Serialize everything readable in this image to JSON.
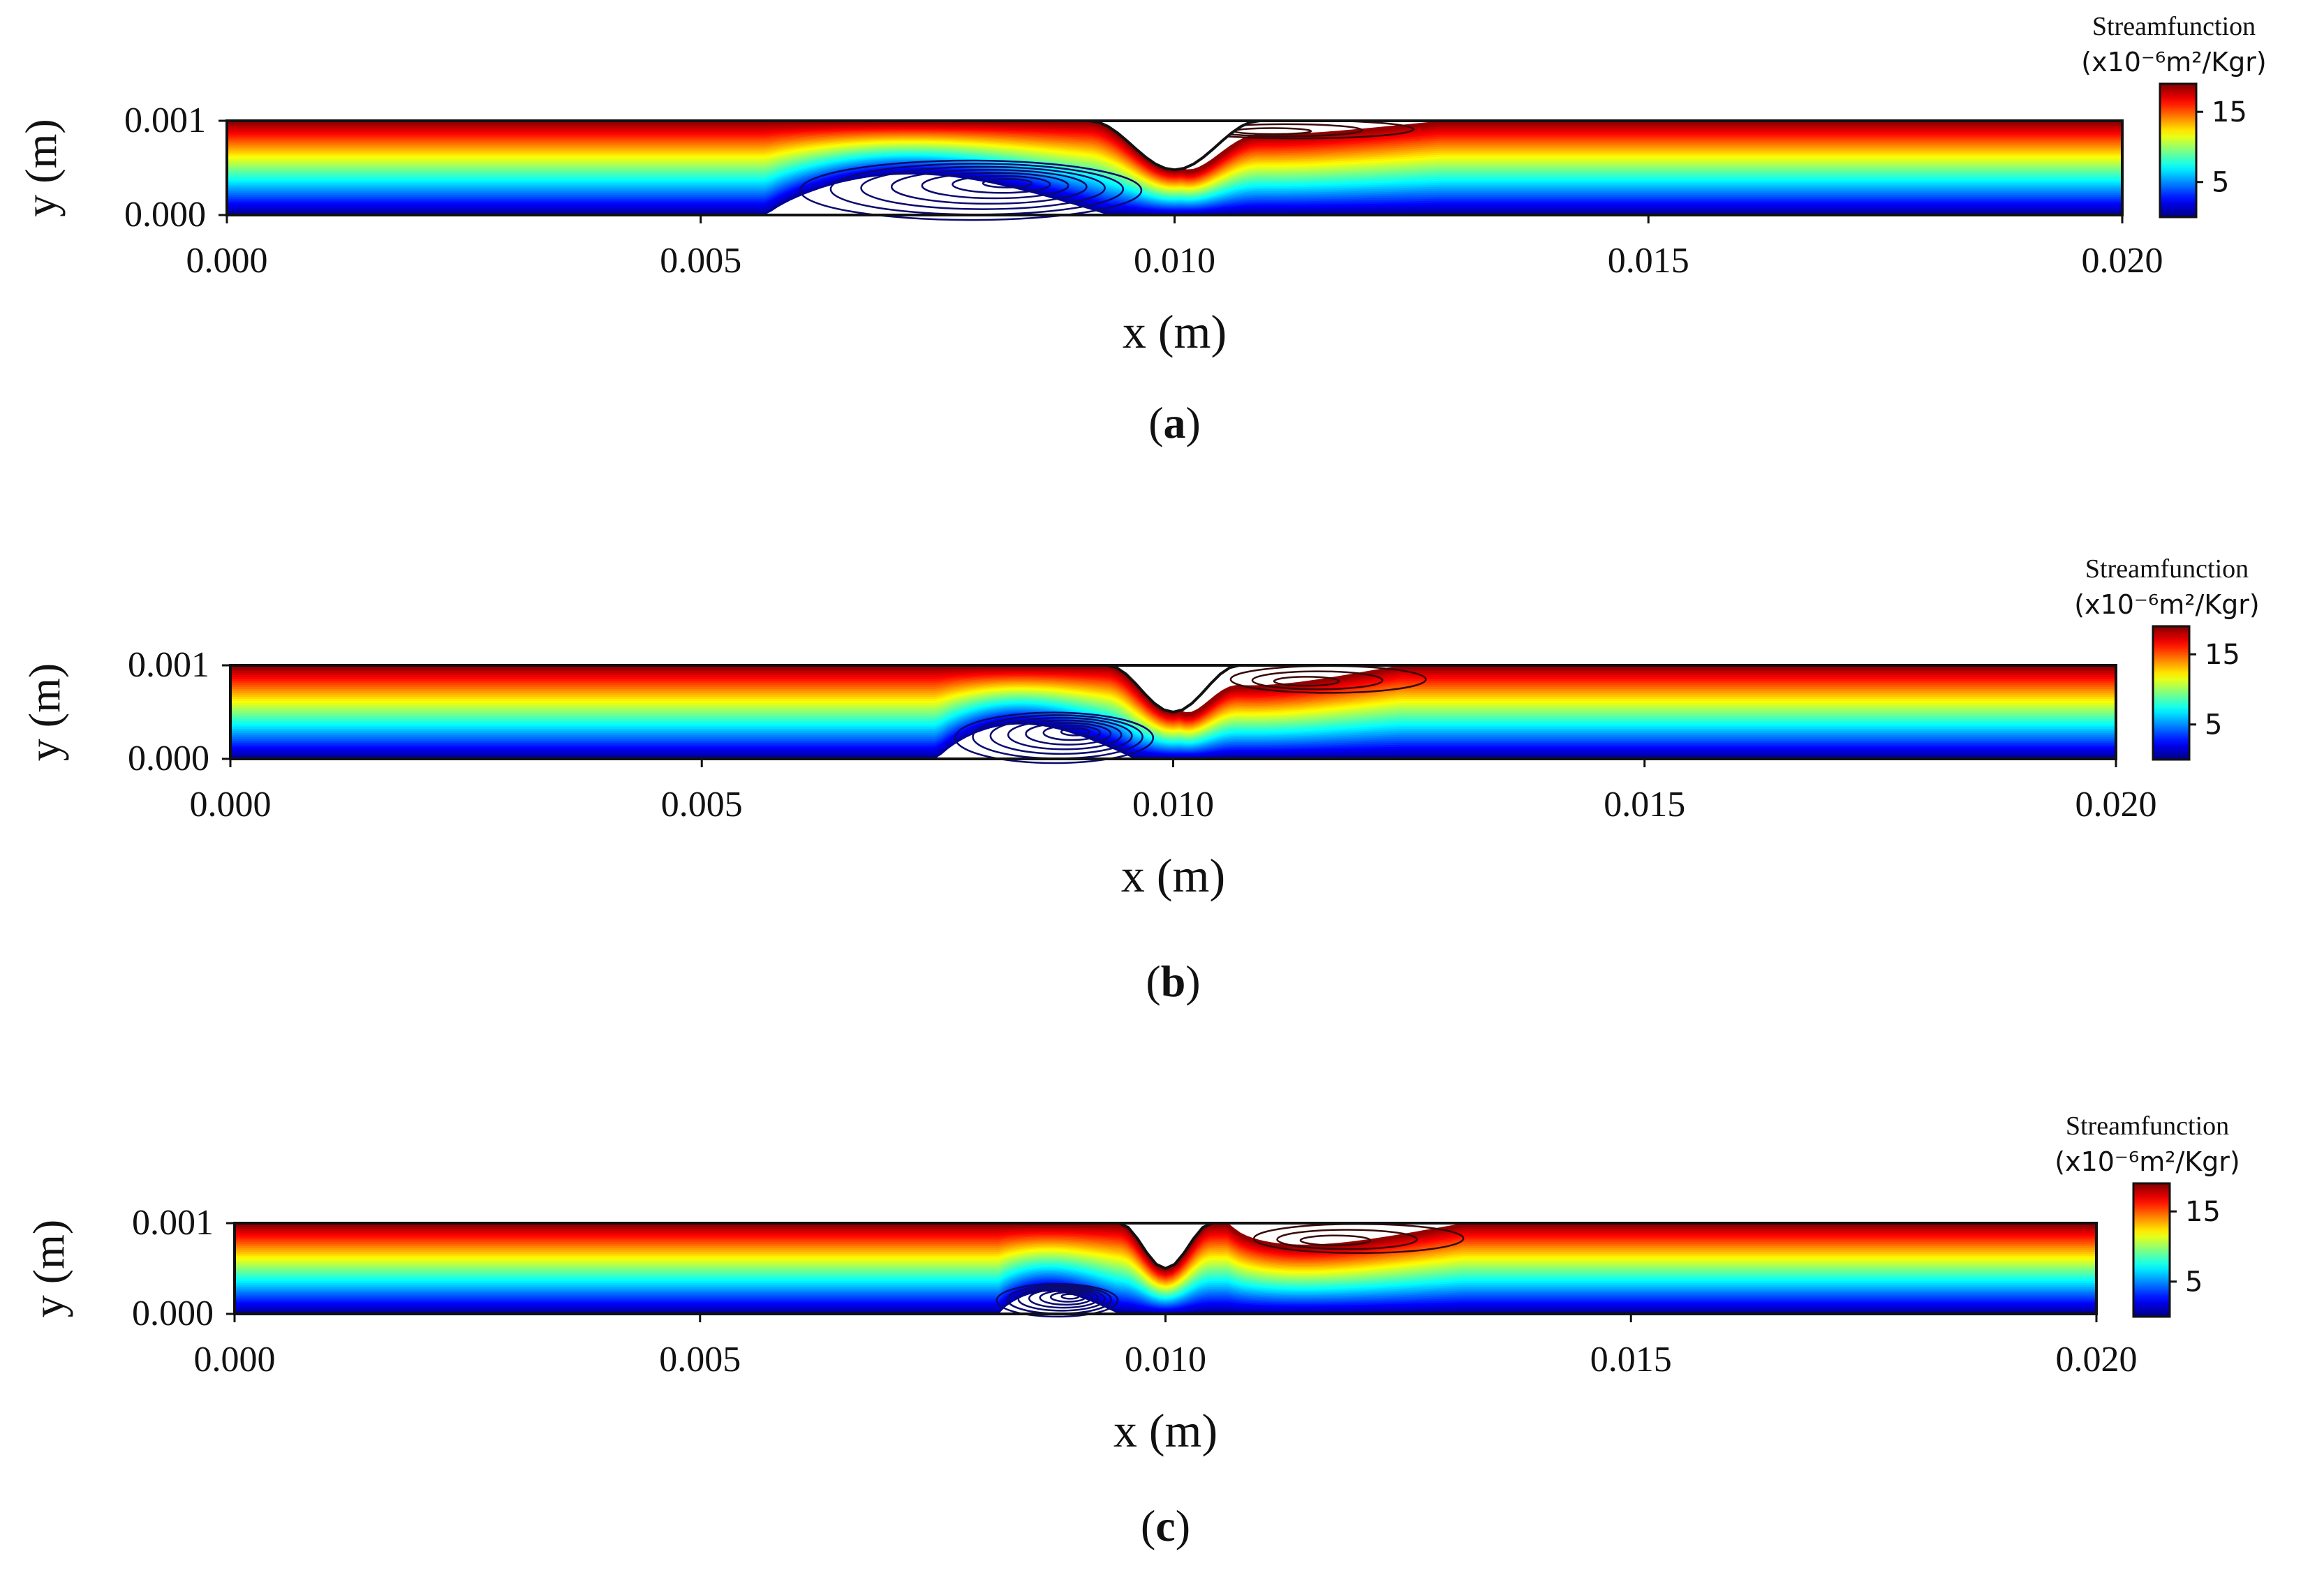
{
  "figure": {
    "panels": [
      {
        "label": "(a)",
        "label_letter": "a"
      },
      {
        "label": "(b)",
        "label_letter": "b"
      },
      {
        "label": "(c)",
        "label_letter": "c"
      }
    ]
  },
  "chart_data": [
    {
      "type": "contour",
      "panel": "a",
      "xlabel": "x (m)",
      "ylabel": "y (m)",
      "xlim": [
        0.0,
        0.02
      ],
      "ylim": [
        0.0,
        0.001
      ],
      "xticks": [
        0.0,
        0.005,
        0.01,
        0.015,
        0.02
      ],
      "xtick_labels": [
        "0.000",
        "0.005",
        "0.010",
        "0.015",
        "0.020"
      ],
      "yticks": [
        0.0,
        0.001
      ],
      "ytick_labels": [
        "0.000",
        "0.001"
      ],
      "colorbar": {
        "title": "Streamfunction",
        "unit": "(x10⁻⁶m²/Kgr)",
        "ticks": [
          5,
          15
        ],
        "tick_labels": [
          "5",
          "15"
        ],
        "range": [
          0,
          19
        ]
      },
      "constriction": {
        "center_x": 0.01,
        "start_x": 0.0091,
        "end_x": 0.0109,
        "min_y": 0.00048
      },
      "recirculation_lower": {
        "x_start": 0.0057,
        "x_end": 0.0093,
        "center_x": 0.0083,
        "center_y": 0.00035
      },
      "recirculation_upper": {
        "x_start": 0.0101,
        "x_end": 0.0128,
        "center_x": 0.0109,
        "center_y": 0.00088
      }
    },
    {
      "type": "contour",
      "panel": "b",
      "xlabel": "x (m)",
      "ylabel": "y (m)",
      "xlim": [
        0.0,
        0.02
      ],
      "ylim": [
        0.0,
        0.001
      ],
      "xticks": [
        0.0,
        0.005,
        0.01,
        0.015,
        0.02
      ],
      "xtick_labels": [
        "0.000",
        "0.005",
        "0.010",
        "0.015",
        "0.020"
      ],
      "yticks": [
        0.0,
        0.001
      ],
      "ytick_labels": [
        "0.000",
        "0.001"
      ],
      "colorbar": {
        "title": "Streamfunction",
        "unit": "(x10⁻⁶m²/Kgr)",
        "ticks": [
          5,
          15
        ],
        "tick_labels": [
          "5",
          "15"
        ],
        "range": [
          0,
          19
        ]
      },
      "constriction": {
        "center_x": 0.01,
        "start_x": 0.0093,
        "end_x": 0.0107,
        "min_y": 0.0005
      },
      "recirculation_lower": {
        "x_start": 0.0075,
        "x_end": 0.0096,
        "center_x": 0.009,
        "center_y": 0.0003
      },
      "recirculation_upper": {
        "x_start": 0.0101,
        "x_end": 0.0124,
        "center_x": 0.0113,
        "center_y": 0.00082
      }
    },
    {
      "type": "contour",
      "panel": "c",
      "xlabel": "x (m)",
      "ylabel": "y (m)",
      "xlim": [
        0.0,
        0.02
      ],
      "ylim": [
        0.0,
        0.001
      ],
      "xticks": [
        0.0,
        0.005,
        0.01,
        0.015,
        0.02
      ],
      "xtick_labels": [
        "0.000",
        "0.005",
        "0.010",
        "0.015",
        "0.020"
      ],
      "yticks": [
        0.0,
        0.001
      ],
      "ytick_labels": [
        "0.000",
        "0.001"
      ],
      "colorbar": {
        "title": "Streamfunction",
        "unit": "(x10⁻⁶m²/Kgr)",
        "ticks": [
          5,
          15
        ],
        "tick_labels": [
          "5",
          "15"
        ],
        "range": [
          0,
          19
        ]
      },
      "constriction": {
        "center_x": 0.01,
        "start_x": 0.0095,
        "end_x": 0.0105,
        "min_y": 0.0005
      },
      "recirculation_lower": {
        "x_start": 0.0082,
        "x_end": 0.0095,
        "center_x": 0.009,
        "center_y": 0.0002
      },
      "recirculation_upper": {
        "x_start": 0.0107,
        "x_end": 0.0132,
        "center_x": 0.0117,
        "center_y": 0.0008
      }
    }
  ]
}
